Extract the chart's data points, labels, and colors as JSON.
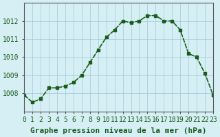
{
  "x": [
    0,
    1,
    2,
    3,
    4,
    5,
    6,
    7,
    8,
    9,
    10,
    11,
    12,
    13,
    14,
    15,
    16,
    17,
    18,
    19,
    20,
    21,
    22,
    23
  ],
  "y": [
    1007.9,
    1007.5,
    1007.7,
    1008.3,
    1008.3,
    1008.4,
    1008.6,
    1009.0,
    1009.7,
    1010.4,
    1011.1,
    1011.5,
    1012.0,
    1011.9,
    1012.0,
    1012.3,
    1012.3,
    1012.0,
    1012.0,
    1011.5,
    1010.2,
    1010.0,
    1009.1,
    1007.9
  ],
  "line_color": "#1a5c1a",
  "marker_color": "#1a5c1a",
  "bg_color": "#d6eff5",
  "grid_color": "#a0c8d8",
  "xlabel": "Graphe pression niveau de la mer (hPa)",
  "xlim": [
    0,
    23
  ],
  "ylim": [
    1007,
    1013
  ],
  "yticks": [
    1008,
    1009,
    1010,
    1011,
    1012
  ],
  "xticks": [
    0,
    1,
    2,
    3,
    4,
    5,
    6,
    7,
    8,
    9,
    10,
    11,
    12,
    13,
    14,
    15,
    16,
    17,
    18,
    19,
    20,
    21,
    22,
    23
  ],
  "title_color": "#1a5c1a",
  "axis_color": "#555555",
  "xlabel_fontsize": 8,
  "tick_fontsize": 7,
  "line_width": 1.2,
  "marker_size": 3
}
